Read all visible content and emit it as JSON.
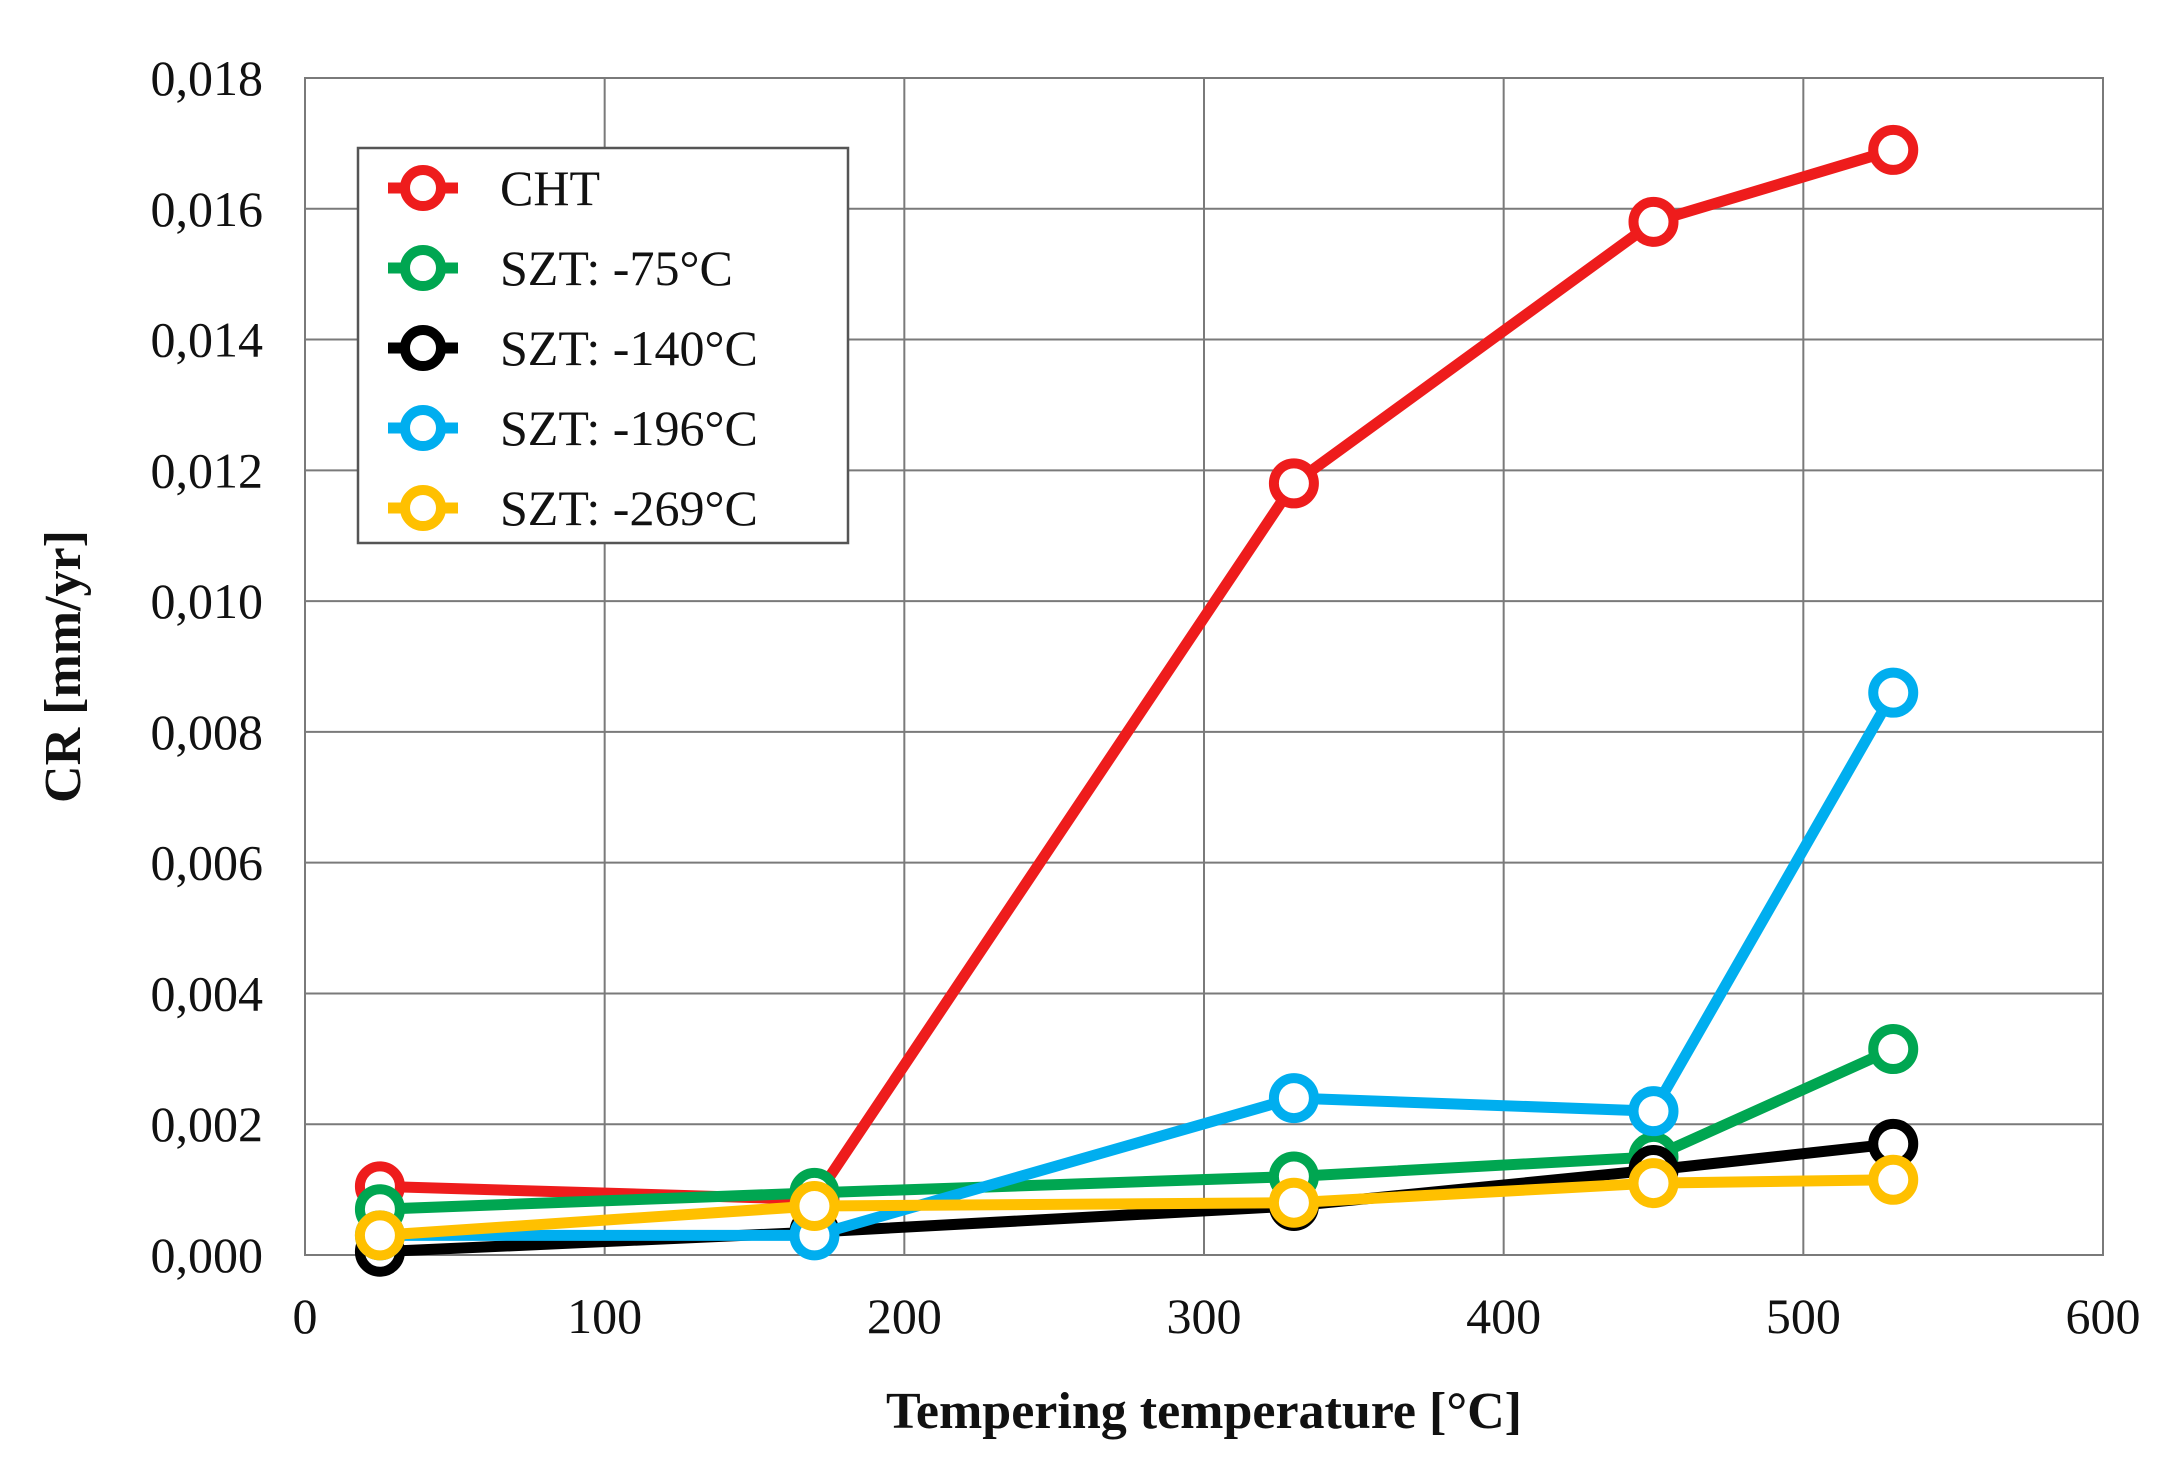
{
  "chart_data": {
    "type": "line",
    "title": "",
    "xlabel": "Tempering temperature [°C]",
    "ylabel": "CR [mm/yr]",
    "xlim": [
      0,
      600
    ],
    "ylim": [
      0.0,
      0.018
    ],
    "x_ticks": [
      0,
      100,
      200,
      300,
      400,
      500,
      600
    ],
    "y_ticks": [
      0.0,
      0.002,
      0.004,
      0.006,
      0.008,
      0.01,
      0.012,
      0.014,
      0.016,
      0.018
    ],
    "x_tick_labels": [
      "0",
      "100",
      "200",
      "300",
      "400",
      "500",
      "600"
    ],
    "y_tick_labels": [
      "0,000",
      "0,002",
      "0,004",
      "0,006",
      "0,008",
      "0,010",
      "0,012",
      "0,014",
      "0,016",
      "0,018"
    ],
    "grid": true,
    "legend_position": "top-left",
    "x": [
      25,
      170,
      330,
      450,
      530
    ],
    "series": [
      {
        "name": "CHT",
        "color": "#ee1c1c",
        "values": [
          0.00105,
          0.00085,
          0.0118,
          0.0158,
          0.0169
        ]
      },
      {
        "name": "SZT: -75°C",
        "color": "#00a651",
        "values": [
          0.0007,
          0.00095,
          0.0012,
          0.0015,
          0.00315
        ]
      },
      {
        "name": "SZT: -140°C",
        "color": "#000000",
        "values": [
          5e-05,
          0.00035,
          0.00075,
          0.0013,
          0.0017
        ]
      },
      {
        "name": "SZT: -196°C",
        "color": "#00aeef",
        "values": [
          0.0003,
          0.0003,
          0.0024,
          0.0022,
          0.0086
        ]
      },
      {
        "name": "SZT: -269°C",
        "color": "#ffc000",
        "values": [
          0.0003,
          0.00075,
          0.0008,
          0.0011,
          0.00115
        ]
      }
    ]
  }
}
